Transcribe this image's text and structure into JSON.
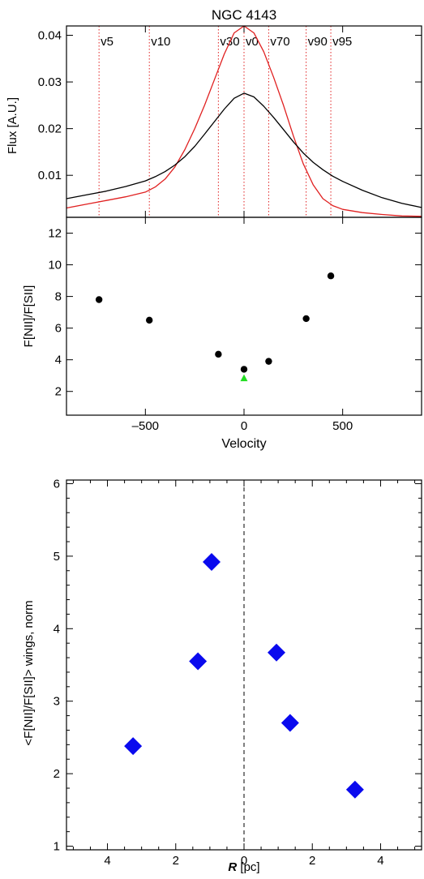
{
  "chart_data": [
    {
      "type": "line",
      "title": "NGC 4143",
      "ylabel": "Flux [A.U.]",
      "xlabel": "",
      "xlim": [
        -900,
        900
      ],
      "ylim": [
        0.001,
        0.042
      ],
      "yticks": [
        0.01,
        0.02,
        0.03,
        0.04
      ],
      "ytick_labels": [
        "0.01",
        "0.02",
        "0.03",
        "0.04"
      ],
      "series": [
        {
          "color": "#e02020",
          "x": [
            -900,
            -800,
            -700,
            -600,
            -500,
            -450,
            -400,
            -350,
            -300,
            -250,
            -200,
            -150,
            -100,
            -50,
            0,
            50,
            100,
            150,
            200,
            250,
            300,
            350,
            400,
            450,
            500,
            600,
            700,
            800,
            900
          ],
          "y": [
            0.003,
            0.0038,
            0.0046,
            0.0054,
            0.0064,
            0.0075,
            0.0092,
            0.0118,
            0.0155,
            0.02,
            0.025,
            0.0305,
            0.036,
            0.0405,
            0.042,
            0.0405,
            0.0365,
            0.031,
            0.025,
            0.0185,
            0.0125,
            0.008,
            0.005,
            0.0035,
            0.0027,
            0.002,
            0.0016,
            0.0013,
            0.0012
          ]
        },
        {
          "color": "#000000",
          "x": [
            -900,
            -800,
            -700,
            -600,
            -500,
            -450,
            -400,
            -350,
            -300,
            -250,
            -200,
            -150,
            -100,
            -50,
            0,
            50,
            100,
            150,
            200,
            250,
            300,
            350,
            400,
            450,
            500,
            600,
            700,
            800,
            900
          ],
          "y": [
            0.005,
            0.0058,
            0.0066,
            0.0076,
            0.0088,
            0.0097,
            0.0108,
            0.0122,
            0.014,
            0.0162,
            0.0188,
            0.0215,
            0.0242,
            0.0265,
            0.0276,
            0.0268,
            0.0248,
            0.0224,
            0.0198,
            0.0172,
            0.0148,
            0.0128,
            0.0112,
            0.0098,
            0.0087,
            0.0068,
            0.0052,
            0.004,
            0.0031
          ]
        }
      ],
      "vlines": [
        {
          "label": "v5",
          "x": -735
        },
        {
          "label": "v10",
          "x": -480
        },
        {
          "label": "v30",
          "x": -130
        },
        {
          "label": "v0",
          "x": 0
        },
        {
          "label": "v70",
          "x": 125
        },
        {
          "label": "v90",
          "x": 315
        },
        {
          "label": "v95",
          "x": 440
        }
      ]
    },
    {
      "type": "scatter",
      "xlabel": "Velocity",
      "ylabel": "F[NII]/F[SII]",
      "xlim": [
        -900,
        900
      ],
      "ylim": [
        0.5,
        13
      ],
      "yticks": [
        2,
        4,
        6,
        8,
        10,
        12
      ],
      "ytick_labels": [
        "2",
        "4",
        "6",
        "8",
        "10",
        "12"
      ],
      "xticks": [
        -500,
        0,
        500
      ],
      "xtick_labels": [
        "–500",
        "0",
        "500"
      ],
      "points": [
        {
          "x": -735,
          "y": 7.8
        },
        {
          "x": -480,
          "y": 6.5
        },
        {
          "x": -130,
          "y": 4.35
        },
        {
          "x": 0,
          "y": 3.4
        },
        {
          "x": 125,
          "y": 3.9
        },
        {
          "x": 315,
          "y": 6.6
        },
        {
          "x": 440,
          "y": 9.3
        }
      ],
      "marker_point": {
        "x": 0,
        "y": 2.85,
        "color": "#22dd22"
      }
    },
    {
      "type": "scatter",
      "xlabel_italic": "R",
      "xlabel_rest": " [pc]",
      "ylabel": "<F[NII]/F[SII]> wings, norm",
      "xlim": [
        -5.2,
        5.2
      ],
      "ylim": [
        0.95,
        6.05
      ],
      "xticks": [
        -4,
        -2,
        0,
        2,
        4
      ],
      "xtick_labels": [
        "4",
        "2",
        "0",
        "2",
        "4"
      ],
      "yticks": [
        1,
        2,
        3,
        4,
        5,
        6
      ],
      "ytick_labels": [
        "1",
        "2",
        "3",
        "4",
        "5",
        "6"
      ],
      "color": "#0a0aee",
      "points": [
        {
          "x": -3.25,
          "y": 2.38
        },
        {
          "x": -1.35,
          "y": 3.55
        },
        {
          "x": -0.95,
          "y": 4.92
        },
        {
          "x": 0.95,
          "y": 3.67
        },
        {
          "x": 1.35,
          "y": 2.7
        },
        {
          "x": 3.25,
          "y": 1.78
        }
      ]
    }
  ]
}
